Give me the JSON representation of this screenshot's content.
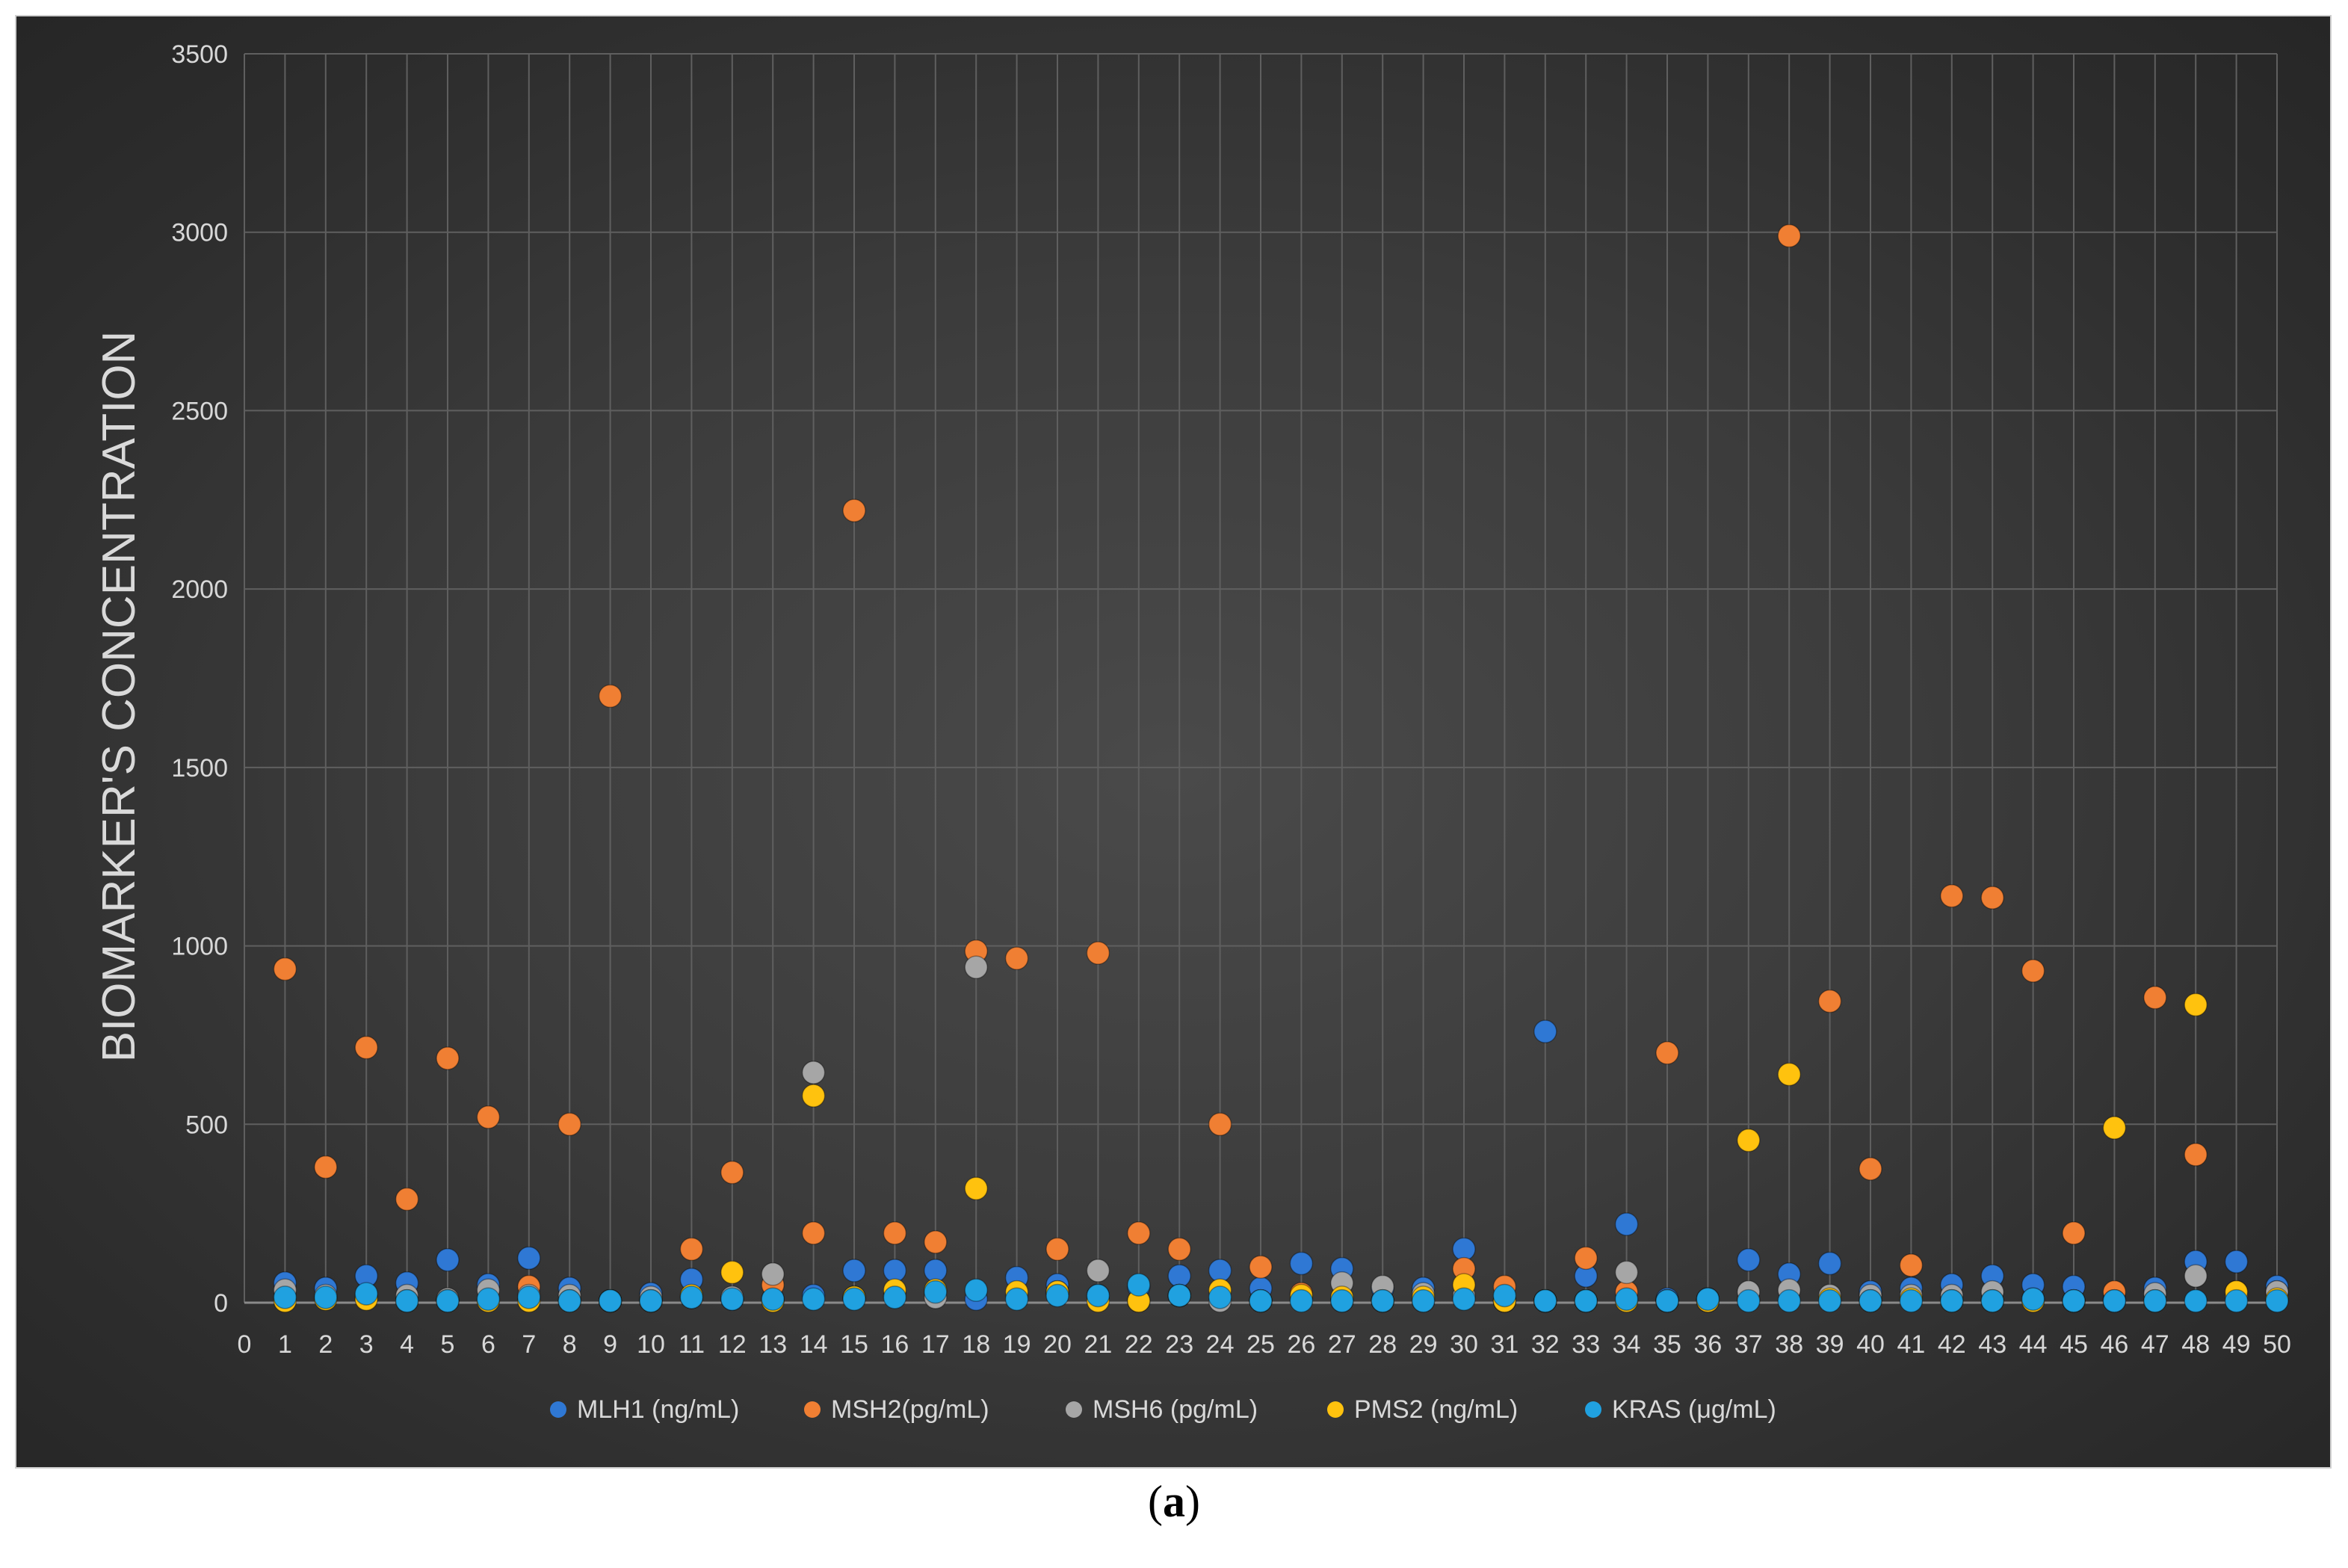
{
  "caption": {
    "open": "(",
    "letter": "a",
    "close": ")"
  },
  "chart_data": {
    "type": "scatter",
    "title": "",
    "xlabel": "",
    "ylabel": "BIOMARKER'S CONCENTRATION",
    "xlim": [
      0,
      50
    ],
    "ylim": [
      0,
      3500
    ],
    "x_ticks": [
      0,
      1,
      2,
      3,
      4,
      5,
      6,
      7,
      8,
      9,
      10,
      11,
      12,
      13,
      14,
      15,
      16,
      17,
      18,
      19,
      20,
      21,
      22,
      23,
      24,
      25,
      26,
      27,
      28,
      29,
      30,
      31,
      32,
      33,
      34,
      35,
      36,
      37,
      38,
      39,
      40,
      41,
      42,
      43,
      44,
      45,
      46,
      47,
      48,
      49,
      50
    ],
    "y_ticks": [
      0,
      500,
      1000,
      1500,
      2000,
      2500,
      3000,
      3500
    ],
    "grid": true,
    "legend_position": "bottom",
    "x": [
      1,
      2,
      3,
      4,
      5,
      6,
      7,
      8,
      9,
      10,
      11,
      12,
      13,
      14,
      15,
      16,
      17,
      18,
      19,
      20,
      21,
      22,
      23,
      24,
      25,
      26,
      27,
      28,
      29,
      30,
      31,
      32,
      33,
      34,
      35,
      36,
      37,
      38,
      39,
      40,
      41,
      42,
      43,
      44,
      45,
      46,
      47,
      48,
      49,
      50
    ],
    "series": [
      {
        "name": "MLH1 (ng/mL)",
        "color": "#2f78d4",
        "values": [
          55,
          40,
          75,
          55,
          120,
          50,
          125,
          40,
          5,
          25,
          65,
          10,
          10,
          20,
          90,
          90,
          90,
          10,
          70,
          50,
          20,
          45,
          75,
          90,
          40,
          110,
          95,
          40,
          40,
          150,
          5,
          760,
          75,
          220,
          10,
          10,
          120,
          80,
          110,
          30,
          40,
          50,
          75,
          50,
          45,
          10,
          40,
          115,
          115,
          45
        ]
      },
      {
        "name": "MSH2(pg/mL)",
        "color": "#f07f33",
        "values": [
          935,
          380,
          715,
          290,
          685,
          520,
          45,
          500,
          1700,
          5,
          150,
          365,
          50,
          195,
          2220,
          195,
          170,
          985,
          965,
          150,
          980,
          195,
          150,
          500,
          100,
          25,
          5,
          5,
          5,
          95,
          45,
          5,
          125,
          30,
          700,
          10,
          10,
          2990,
          845,
          375,
          105,
          1140,
          1135,
          930,
          195,
          30,
          855,
          415,
          30,
          30
        ]
      },
      {
        "name": "MSH6 (pg/mL)",
        "color": "#a6a6a6",
        "values": [
          35,
          20,
          15,
          20,
          10,
          35,
          20,
          20,
          5,
          15,
          15,
          15,
          80,
          645,
          15,
          20,
          15,
          940,
          20,
          30,
          90,
          5,
          20,
          5,
          5,
          10,
          55,
          45,
          25,
          20,
          5,
          5,
          5,
          85,
          5,
          5,
          30,
          35,
          20,
          20,
          20,
          20,
          30,
          10,
          5,
          5,
          25,
          75,
          20,
          30
        ]
      },
      {
        "name": "PMS2 (ng/mL)",
        "color": "#ffc20e",
        "values": [
          5,
          10,
          10,
          5,
          5,
          5,
          5,
          5,
          5,
          5,
          20,
          85,
          5,
          580,
          15,
          35,
          35,
          320,
          30,
          30,
          5,
          5,
          20,
          35,
          5,
          20,
          15,
          5,
          15,
          50,
          5,
          5,
          5,
          5,
          5,
          5,
          455,
          640,
          10,
          5,
          10,
          5,
          5,
          5,
          5,
          490,
          5,
          835,
          30,
          10
        ]
      },
      {
        "name": "KRAS (μg/mL)",
        "color": "#20a1e0",
        "values": [
          15,
          15,
          25,
          5,
          5,
          10,
          15,
          5,
          5,
          5,
          15,
          10,
          10,
          10,
          10,
          15,
          30,
          35,
          10,
          20,
          20,
          50,
          20,
          15,
          5,
          5,
          5,
          5,
          5,
          10,
          20,
          5,
          5,
          10,
          5,
          10,
          5,
          5,
          5,
          5,
          5,
          5,
          5,
          10,
          5,
          5,
          5,
          5,
          5,
          5
        ]
      }
    ]
  }
}
